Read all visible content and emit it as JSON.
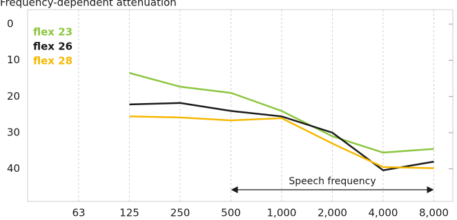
{
  "chart_data": {
    "type": "line",
    "title": "Frequency-dependent attenuation",
    "categories": [
      "63",
      "125",
      "250",
      "500",
      "1,000",
      "2,000",
      "4,000",
      "8,000"
    ],
    "series": [
      {
        "name": "flex 23",
        "color": "#8cc63f",
        "values": [
          null,
          13.5,
          17.3,
          19,
          24,
          31,
          35.5,
          34.5
        ]
      },
      {
        "name": "flex 26",
        "color": "#1a1a1a",
        "values": [
          null,
          22.2,
          21.8,
          24,
          25.5,
          30,
          40.4,
          38
        ]
      },
      {
        "name": "flex 28",
        "color": "#f5b800",
        "values": [
          null,
          25.5,
          25.8,
          26.6,
          26,
          33,
          39.5,
          39.8
        ]
      }
    ],
    "ylim": [
      -4,
      49
    ],
    "yticks": [
      0,
      10,
      20,
      30,
      40
    ],
    "y_inverted": true,
    "grid": true,
    "annotation": {
      "text": "Speech frequency",
      "from": "500",
      "to": "8,000"
    }
  }
}
